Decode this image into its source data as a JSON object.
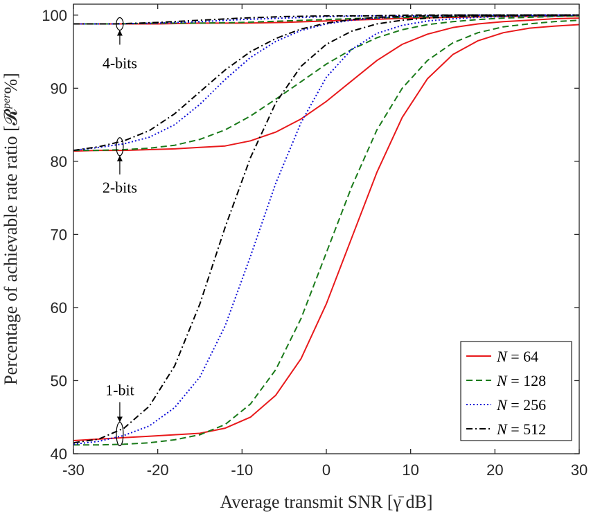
{
  "chart_data": {
    "type": "line",
    "title": "",
    "xlabel": "Average transmit SNR [γ̄ dB]",
    "ylabel": "Percentage of achievable rate ratio [𝓡",
    "ylabel_sup": "per",
    "ylabel_end": "%]",
    "xlim": [
      -30,
      30
    ],
    "ylim": [
      40,
      101.5
    ],
    "xticks": [
      -30,
      -20,
      -10,
      0,
      10,
      20,
      30
    ],
    "xtick_labels": [
      "-30",
      "-20",
      "-10",
      "0",
      "10",
      "20",
      "30"
    ],
    "yticks": [
      40,
      50,
      60,
      70,
      80,
      90,
      100
    ],
    "ytick_labels": [
      "40",
      "50",
      "60",
      "70",
      "80",
      "90",
      "100"
    ],
    "grid": false,
    "legend_position": "bottom-right",
    "series": [
      {
        "name": "N = 64",
        "label_var": "N",
        "label_val": "= 64",
        "color": "#e8191b",
        "dash": "solid",
        "groups": [
          {
            "bits": "1-bit",
            "x": [
              -30,
              -27,
              -24,
              -21,
              -18,
              -15,
              -12,
              -9,
              -6,
              -3,
              0,
              3,
              6,
              9,
              12,
              15,
              18,
              21,
              24,
              27,
              30
            ],
            "y": [
              41.8,
              42.0,
              42.2,
              42.4,
              42.6,
              42.8,
              43.5,
              45.0,
              48.0,
              53.0,
              60.5,
              69.5,
              78.5,
              86.0,
              91.3,
              94.6,
              96.5,
              97.6,
              98.2,
              98.5,
              98.7
            ]
          },
          {
            "bits": "2-bits",
            "x": [
              -30,
              -27,
              -24,
              -21,
              -18,
              -15,
              -12,
              -9,
              -6,
              -3,
              0,
              3,
              6,
              9,
              12,
              15,
              18,
              21,
              24,
              27,
              30
            ],
            "y": [
              81.4,
              81.5,
              81.5,
              81.6,
              81.7,
              81.9,
              82.1,
              82.8,
              84.0,
              85.8,
              88.2,
              91.0,
              93.8,
              96.0,
              97.4,
              98.3,
              98.8,
              99.1,
              99.3,
              99.5,
              99.6
            ]
          },
          {
            "bits": "4-bits",
            "x": [
              -30,
              -25,
              -20,
              -15,
              -10,
              -5,
              0,
              5,
              10,
              15,
              20,
              25,
              30
            ],
            "y": [
              98.8,
              98.8,
              98.8,
              98.9,
              98.9,
              99.0,
              99.2,
              99.4,
              99.6,
              99.7,
              99.8,
              99.8,
              99.9
            ]
          }
        ]
      },
      {
        "name": "N = 128",
        "label_var": "N",
        "label_val": "= 128",
        "color": "#1a7a1a",
        "dash": "dashed",
        "groups": [
          {
            "bits": "1-bit",
            "x": [
              -30,
              -27,
              -24,
              -21,
              -18,
              -15,
              -12,
              -9,
              -6,
              -3,
              0,
              3,
              6,
              9,
              12,
              15,
              18,
              21,
              24,
              27,
              30
            ],
            "y": [
              41.2,
              41.2,
              41.3,
              41.5,
              41.9,
              42.6,
              44.0,
              46.8,
              51.5,
              58.5,
              67.5,
              76.5,
              84.3,
              90.0,
              93.8,
              96.2,
              97.6,
              98.4,
              98.8,
              99.1,
              99.3
            ]
          },
          {
            "bits": "2-bits",
            "x": [
              -30,
              -27,
              -24,
              -21,
              -18,
              -15,
              -12,
              -9,
              -6,
              -3,
              0,
              3,
              6,
              9,
              12,
              15,
              18,
              21,
              24,
              27,
              30
            ],
            "y": [
              81.5,
              81.5,
              81.6,
              81.8,
              82.2,
              83.0,
              84.3,
              86.2,
              88.5,
              90.9,
              93.3,
              95.3,
              96.9,
              98.0,
              98.7,
              99.1,
              99.4,
              99.6,
              99.7,
              99.8,
              99.9
            ]
          },
          {
            "bits": "4-bits",
            "x": [
              -30,
              -25,
              -20,
              -15,
              -10,
              -5,
              0,
              5,
              10,
              15,
              20,
              25,
              30
            ],
            "y": [
              98.8,
              98.8,
              98.9,
              98.9,
              99.0,
              99.2,
              99.4,
              99.6,
              99.7,
              99.8,
              99.9,
              99.9,
              99.9
            ]
          }
        ]
      },
      {
        "name": "N = 256",
        "label_var": "N",
        "label_val": "= 256",
        "color": "#1010d8",
        "dash": "dotted",
        "groups": [
          {
            "bits": "1-bit",
            "x": [
              -30,
              -27,
              -24,
              -21,
              -18,
              -15,
              -12,
              -9,
              -6,
              -3,
              0,
              3,
              6,
              9,
              12,
              15,
              18,
              21,
              24,
              27,
              30
            ],
            "y": [
              41.3,
              41.7,
              42.5,
              43.8,
              46.3,
              50.5,
              57.5,
              67.0,
              77.0,
              85.3,
              91.5,
              95.3,
              97.5,
              98.6,
              99.2,
              99.5,
              99.7,
              99.8,
              99.9,
              99.9,
              100.0
            ]
          },
          {
            "bits": "2-bits",
            "x": [
              -30,
              -27,
              -24,
              -21,
              -18,
              -15,
              -12,
              -9,
              -6,
              -3,
              0,
              3,
              6,
              9,
              12,
              15,
              18,
              21,
              24,
              27,
              30
            ],
            "y": [
              81.5,
              81.9,
              82.4,
              83.3,
              85.0,
              87.8,
              91.2,
              94.2,
              96.4,
              97.9,
              98.8,
              99.3,
              99.6,
              99.8,
              99.9,
              99.9,
              100.0,
              100.0,
              100.0,
              100.0,
              100.0
            ]
          },
          {
            "bits": "4-bits",
            "x": [
              -30,
              -25,
              -20,
              -15,
              -10,
              -5,
              0,
              5,
              10,
              15,
              20,
              25,
              30
            ],
            "y": [
              98.8,
              98.8,
              98.9,
              99.1,
              99.4,
              99.6,
              99.8,
              99.9,
              99.9,
              100.0,
              100.0,
              100.0,
              100.0
            ]
          }
        ]
      },
      {
        "name": "N = 512",
        "label_var": "N",
        "label_val": "= 512",
        "color": "#000000",
        "dash": "dashdot",
        "groups": [
          {
            "bits": "1-bit",
            "x": [
              -30,
              -27,
              -24,
              -21,
              -18,
              -15,
              -12,
              -9,
              -6,
              -3,
              0,
              3,
              6,
              9,
              12,
              15,
              18,
              21,
              24,
              27,
              30
            ],
            "y": [
              41.5,
              42.0,
              43.5,
              46.5,
              52.0,
              60.5,
              71.0,
              80.5,
              88.0,
              93.0,
              96.0,
              97.8,
              98.8,
              99.3,
              99.6,
              99.8,
              99.9,
              99.9,
              100.0,
              100.0,
              100.0
            ]
          },
          {
            "bits": "2-bits",
            "x": [
              -30,
              -27,
              -24,
              -21,
              -18,
              -15,
              -12,
              -9,
              -6,
              -3,
              0,
              3,
              6,
              9,
              12,
              15,
              18,
              21,
              24,
              27,
              30
            ],
            "y": [
              81.5,
              82.0,
              82.8,
              84.2,
              86.5,
              89.5,
              92.5,
              95.0,
              96.8,
              98.1,
              98.9,
              99.4,
              99.7,
              99.8,
              99.9,
              100.0,
              100.0,
              100.0,
              100.0,
              100.0,
              100.0
            ]
          },
          {
            "bits": "4-bits",
            "x": [
              -30,
              -25,
              -20,
              -15,
              -10,
              -5,
              0,
              5,
              10,
              15,
              20,
              25,
              30
            ],
            "y": [
              98.8,
              98.8,
              99.0,
              99.3,
              99.6,
              99.8,
              99.9,
              99.9,
              100.0,
              100.0,
              100.0,
              100.0,
              100.0
            ]
          }
        ]
      }
    ],
    "annotations": [
      {
        "text": "4-bits",
        "x": -24.5,
        "y": 98.8
      },
      {
        "text": "2-bits",
        "x": -24.5,
        "y": 82.0
      },
      {
        "text": "1-bit",
        "x": -24.5,
        "y": 42.7
      }
    ]
  }
}
